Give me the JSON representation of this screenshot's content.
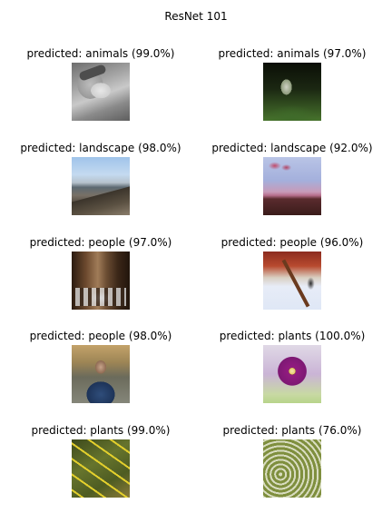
{
  "figure": {
    "title": "ResNet 101"
  },
  "predictions": [
    [
      {
        "label": "predicted: animals (99.0%)",
        "category": "animals",
        "confidence": 99.0
      },
      {
        "label": "predicted: animals (97.0%)",
        "category": "animals",
        "confidence": 97.0
      }
    ],
    [
      {
        "label": "predicted: landscape (98.0%)",
        "category": "landscape",
        "confidence": 98.0
      },
      {
        "label": "predicted: landscape (92.0%)",
        "category": "landscape",
        "confidence": 92.0
      }
    ],
    [
      {
        "label": "predicted: people (97.0%)",
        "category": "people",
        "confidence": 97.0
      },
      {
        "label": "predicted: people (96.0%)",
        "category": "people",
        "confidence": 96.0
      }
    ],
    [
      {
        "label": "predicted: people (98.0%)",
        "category": "people",
        "confidence": 98.0
      },
      {
        "label": "predicted: plants (100.0%)",
        "category": "plants",
        "confidence": 100.0
      }
    ],
    [
      {
        "label": "predicted: plants (99.0%)",
        "category": "plants",
        "confidence": 99.0
      },
      {
        "label": "predicted: plants (76.0%)",
        "category": "plants",
        "confidence": 76.0
      }
    ]
  ]
}
